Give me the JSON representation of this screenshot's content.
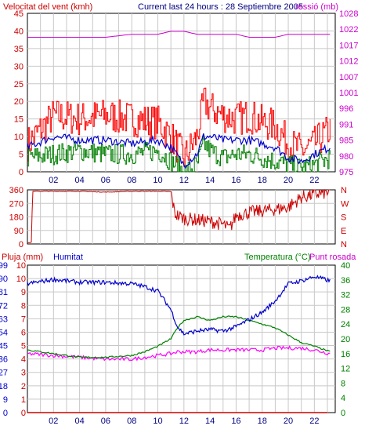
{
  "header": {
    "wind_title": "Velocitat del vent (kmh)",
    "center_title": "Current last 24 hours : 28 Septiembre 2005",
    "pressure_title": "ressió (mb)"
  },
  "colors": {
    "wind_gust": "#ff0000",
    "wind_avg": "#0000cc",
    "wind_min": "#008000",
    "pressure": "#cc00cc",
    "direction": "#cc0000",
    "humidity": "#0000cc",
    "temperature": "#008000",
    "dewpoint": "#ff00ff",
    "rain": "#cc0000",
    "grid": "#c8c8c8",
    "frame": "#000000"
  },
  "chart_data": [
    {
      "type": "line",
      "panel": "wind",
      "title": "Velocitat del vent (kmh)",
      "x": [
        0,
        2,
        4,
        6,
        8,
        10,
        11,
        12,
        13,
        13.5,
        14,
        15,
        16,
        17,
        18,
        19,
        20,
        21,
        22,
        23.2
      ],
      "xticks": [
        "02",
        "04",
        "06",
        "08",
        "10",
        "12",
        "14",
        "16",
        "18",
        "20",
        "22"
      ],
      "xlim": [
        0,
        23.6
      ],
      "y_left": {
        "ticks": [
          "0",
          "5",
          "10",
          "15",
          "20",
          "25",
          "30",
          "35",
          "40",
          "45"
        ],
        "ylim": [
          0,
          45
        ]
      },
      "y_right": {
        "ticks": [
          "975",
          "980",
          "985",
          "991",
          "996",
          "1001",
          "1007",
          "1012",
          "1017",
          "1022",
          "1028"
        ],
        "ylim": [
          975,
          1028
        ]
      },
      "series": [
        {
          "values": [
            8,
            16,
            15,
            16,
            15,
            14,
            10,
            4,
            10,
            20,
            18,
            16,
            15,
            16,
            14,
            13,
            8,
            6,
            8,
            12
          ]
        },
        {
          "values": [
            7,
            10,
            9,
            9,
            8,
            9,
            7,
            2,
            5,
            10,
            10,
            9,
            9,
            9,
            8,
            7,
            4,
            3,
            5,
            7
          ]
        },
        {
          "values": [
            4,
            5,
            6,
            5,
            5,
            6,
            3,
            0,
            2,
            8,
            6,
            4,
            5,
            5,
            4,
            3,
            2,
            1,
            2,
            4
          ]
        },
        {
          "axis": "right",
          "values": [
            1020,
            1020,
            1020,
            1020,
            1021,
            1021,
            1022,
            1022,
            1021,
            1021,
            1021,
            1021,
            1021,
            1020,
            1020,
            1020,
            1021,
            1021,
            1021,
            1021
          ]
        }
      ]
    },
    {
      "type": "line",
      "panel": "direction",
      "x": [
        0,
        0.3,
        0.4,
        2,
        4,
        6,
        8,
        10,
        11,
        11.3,
        12,
        13,
        14,
        15,
        15.5,
        16,
        17,
        18,
        19,
        20,
        21,
        22,
        23.2
      ],
      "xlim": [
        0,
        23.6
      ],
      "y_left": {
        "ticks": [
          "0",
          "90",
          "180",
          "270",
          "360"
        ],
        "ylim": [
          0,
          360
        ]
      },
      "y_right": {
        "ticks": [
          "N",
          "E",
          "S",
          "W",
          "N"
        ]
      },
      "series": [
        {
          "values": [
            10,
            10,
            350,
            350,
            350,
            345,
            350,
            350,
            348,
            200,
            170,
            160,
            150,
            130,
            100,
            190,
            210,
            220,
            230,
            245,
            310,
            330,
            345
          ]
        }
      ]
    },
    {
      "type": "line",
      "panel": "climate",
      "x": [
        0,
        2,
        4,
        6,
        8,
        9,
        10,
        11,
        11.5,
        12,
        13,
        14,
        15,
        16,
        17,
        18,
        19,
        20,
        21,
        22,
        23.2
      ],
      "xticks": [
        "02",
        "04",
        "06",
        "08",
        "10",
        "12",
        "14",
        "16",
        "18",
        "20",
        "22"
      ],
      "xlim": [
        0,
        23.6
      ],
      "left_labels": [
        "Pluja (mm)",
        "Humitat"
      ],
      "right_labels": [
        "Temperatura (°C)",
        "Punt rosada"
      ],
      "y_left": {
        "ticks": [
          "0",
          "9",
          "18",
          "27",
          "36",
          "45",
          "54",
          "63",
          "72",
          "81",
          "90",
          "99"
        ],
        "ylim": [
          0,
          103
        ]
      },
      "y_left_inner": {
        "ticks": [
          "0",
          "1",
          "2",
          "3",
          "4",
          "5",
          "6",
          "7",
          "8",
          "9",
          "10",
          "10"
        ]
      },
      "y_right": {
        "ticks": [
          "0",
          "4",
          "8",
          "12",
          "16",
          "20",
          "24",
          "28",
          "32",
          "36",
          "40"
        ],
        "ylim": [
          0,
          40
        ]
      },
      "series": [
        {
          "axis": "left",
          "values": [
            90,
            93,
            91,
            91,
            90,
            88,
            85,
            72,
            60,
            55,
            57,
            58,
            57,
            60,
            65,
            70,
            78,
            90,
            92,
            95,
            92
          ]
        },
        {
          "axis": "right",
          "values": [
            17,
            16,
            15,
            15,
            15.5,
            16.5,
            18,
            20,
            23,
            25,
            26,
            25,
            26,
            26,
            25,
            24,
            23,
            21,
            19,
            18,
            16.5
          ]
        },
        {
          "axis": "right",
          "values": [
            16,
            15.5,
            15,
            14.5,
            14.5,
            15,
            15.5,
            16,
            16.5,
            16.5,
            16.5,
            17,
            17,
            17,
            17,
            17,
            17.5,
            17.5,
            17.5,
            17,
            16
          ]
        },
        {
          "axis": "left",
          "values": [
            0,
            0,
            0,
            0,
            0,
            0,
            0,
            0,
            0,
            0,
            0,
            0,
            0,
            0,
            0,
            0,
            0,
            0,
            0,
            0,
            0
          ]
        }
      ]
    }
  ]
}
